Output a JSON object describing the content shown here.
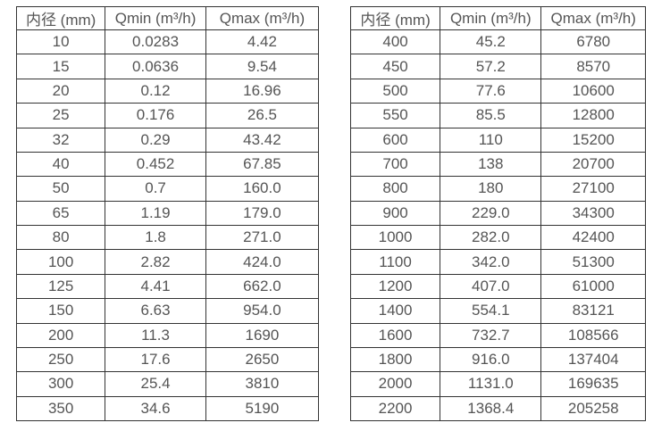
{
  "colors": {
    "background": "#ffffff",
    "border": "#333333",
    "text": "#555555"
  },
  "tables": [
    {
      "name": "flow-spec-table-small-diameters",
      "headers": [
        "内径 (mm)",
        "Qmin (m³/h)",
        "Qmax (m³/h)"
      ],
      "rows": [
        [
          "10",
          "0.0283",
          "4.42"
        ],
        [
          "15",
          "0.0636",
          "9.54"
        ],
        [
          "20",
          "0.12",
          "16.96"
        ],
        [
          "25",
          "0.176",
          "26.5"
        ],
        [
          "32",
          "0.29",
          "43.42"
        ],
        [
          "40",
          "0.452",
          "67.85"
        ],
        [
          "50",
          "0.7",
          "160.0"
        ],
        [
          "65",
          "1.19",
          "179.0"
        ],
        [
          "80",
          "1.8",
          "271.0"
        ],
        [
          "100",
          "2.82",
          "424.0"
        ],
        [
          "125",
          "4.41",
          "662.0"
        ],
        [
          "150",
          "6.63",
          "954.0"
        ],
        [
          "200",
          "11.3",
          "1690"
        ],
        [
          "250",
          "17.6",
          "2650"
        ],
        [
          "300",
          "25.4",
          "3810"
        ],
        [
          "350",
          "34.6",
          "5190"
        ]
      ]
    },
    {
      "name": "flow-spec-table-large-diameters",
      "headers": [
        "内径 (mm)",
        "Qmin (m³/h)",
        "Qmax (m³/h)"
      ],
      "rows": [
        [
          "400",
          "45.2",
          "6780"
        ],
        [
          "450",
          "57.2",
          "8570"
        ],
        [
          "500",
          "77.6",
          "10600"
        ],
        [
          "550",
          "85.5",
          "12800"
        ],
        [
          "600",
          "110",
          "15200"
        ],
        [
          "700",
          "138",
          "20700"
        ],
        [
          "800",
          "180",
          "27100"
        ],
        [
          "900",
          "229.0",
          "34300"
        ],
        [
          "1000",
          "282.0",
          "42400"
        ],
        [
          "1100",
          "342.0",
          "51300"
        ],
        [
          "1200",
          "407.0",
          "61000"
        ],
        [
          "1400",
          "554.1",
          "83121"
        ],
        [
          "1600",
          "732.7",
          "108566"
        ],
        [
          "1800",
          "916.0",
          "137404"
        ],
        [
          "2000",
          "1131.0",
          "169635"
        ],
        [
          "2200",
          "1368.4",
          "205258"
        ]
      ]
    }
  ]
}
